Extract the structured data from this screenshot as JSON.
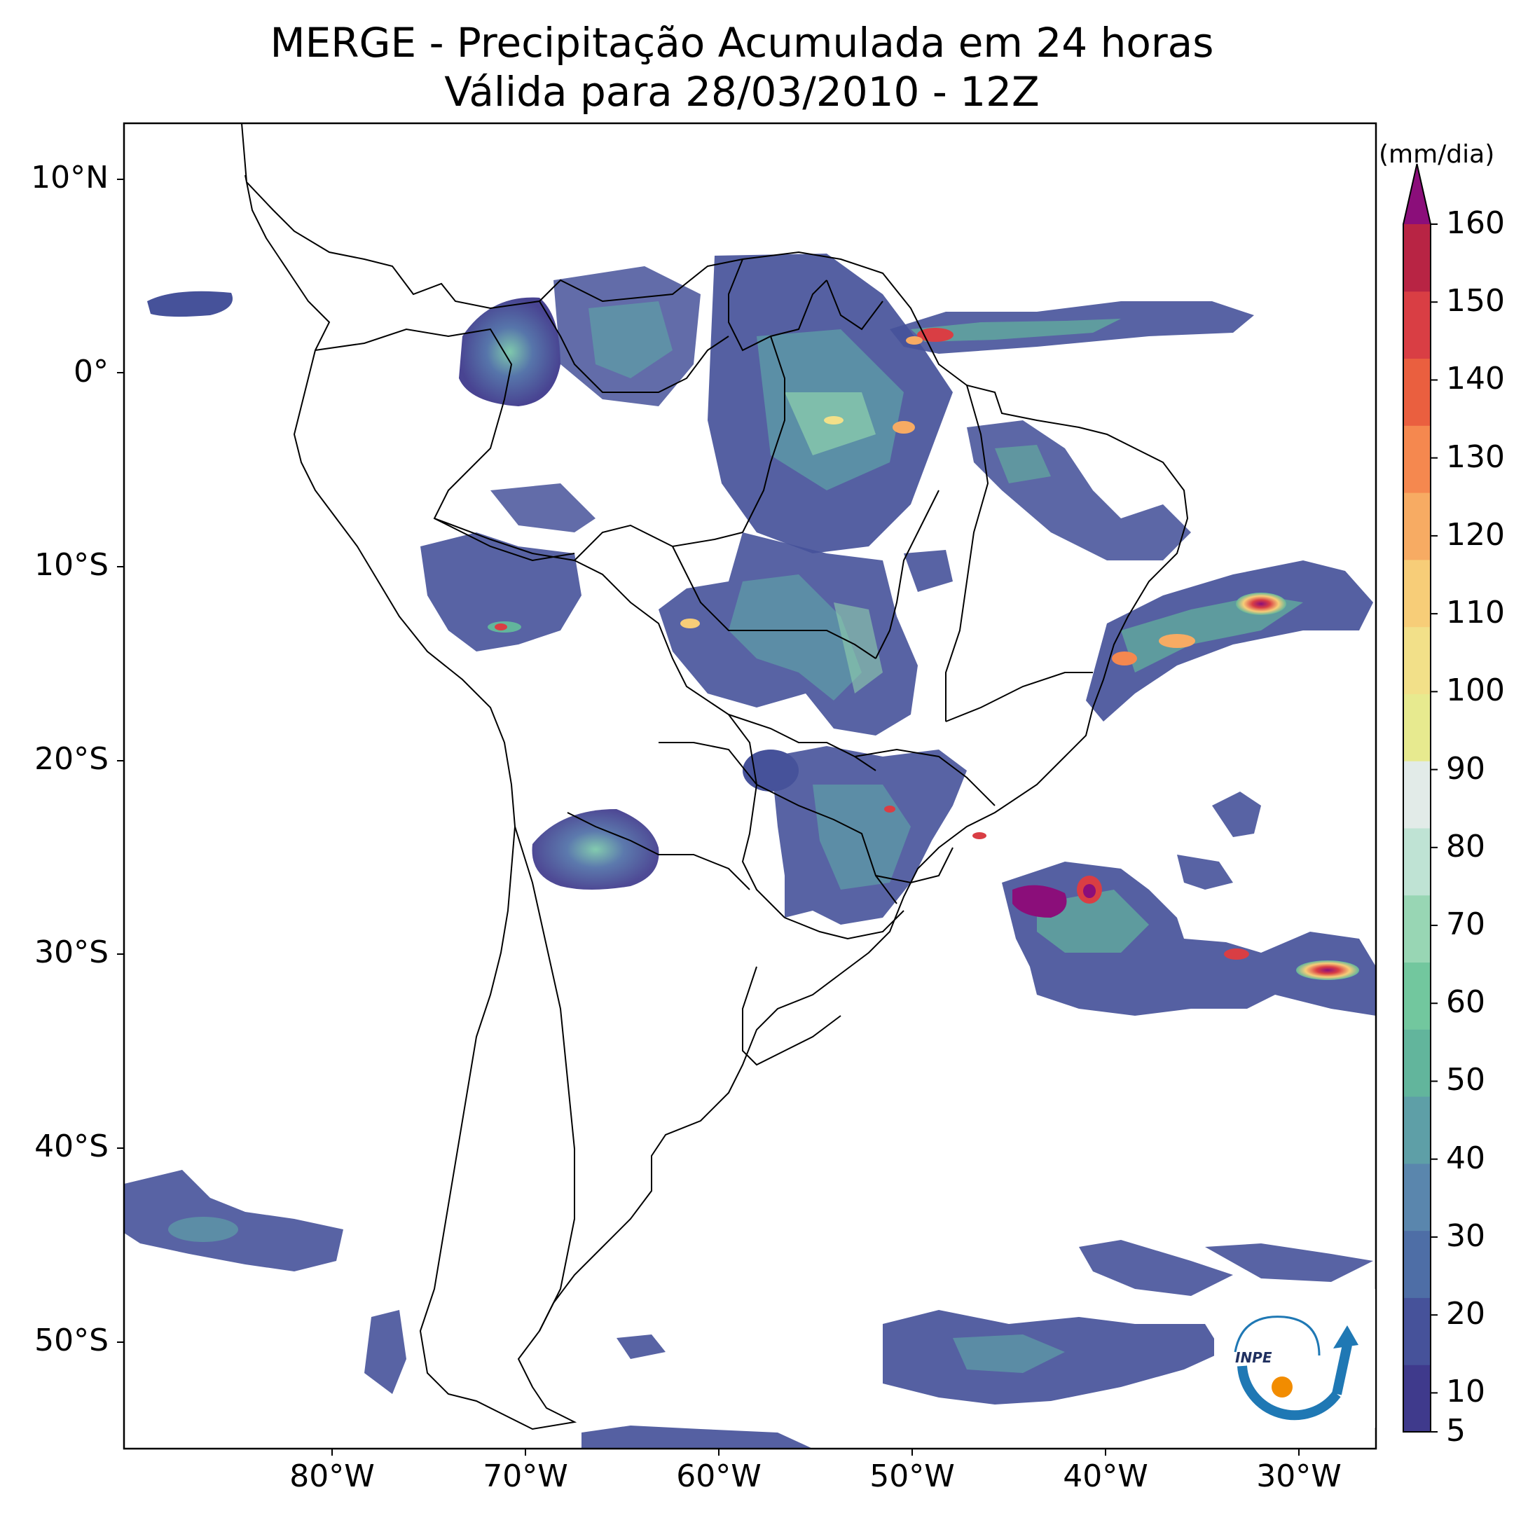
{
  "title": "MERGE - Precipitação Acumulada em 24 horas",
  "subtitle": "Válida para 28/03/2010 - 12Z",
  "lat_labels": [
    "10°N",
    "0°",
    "10°S",
    "20°S",
    "30°S",
    "40°S",
    "50°S"
  ],
  "lon_labels": [
    "80°W",
    "70°W",
    "60°W",
    "50°W",
    "40°W",
    "30°W"
  ],
  "colorbar": {
    "unit": "(mm/dia)",
    "min": 5,
    "max": 160,
    "ticks": [
      "5",
      "10",
      "20",
      "30",
      "40",
      "50",
      "60",
      "70",
      "80",
      "90",
      "100",
      "110",
      "120",
      "130",
      "140",
      "150",
      "160"
    ],
    "colors": [
      "#3f3a8c",
      "#46529a",
      "#4e6ea6",
      "#5a86ad",
      "#5e9fa7",
      "#62b59c",
      "#72c79e",
      "#98d6b4",
      "#bfe3d4",
      "#e2ebe8",
      "#e7ea8f",
      "#f2e089",
      "#f7cd78",
      "#f7ab63",
      "#f5884f",
      "#ea5f3f",
      "#d93e44",
      "#b82444",
      "#8b0e7a"
    ],
    "extend": "max"
  },
  "logo": {
    "text": "INPE"
  }
}
